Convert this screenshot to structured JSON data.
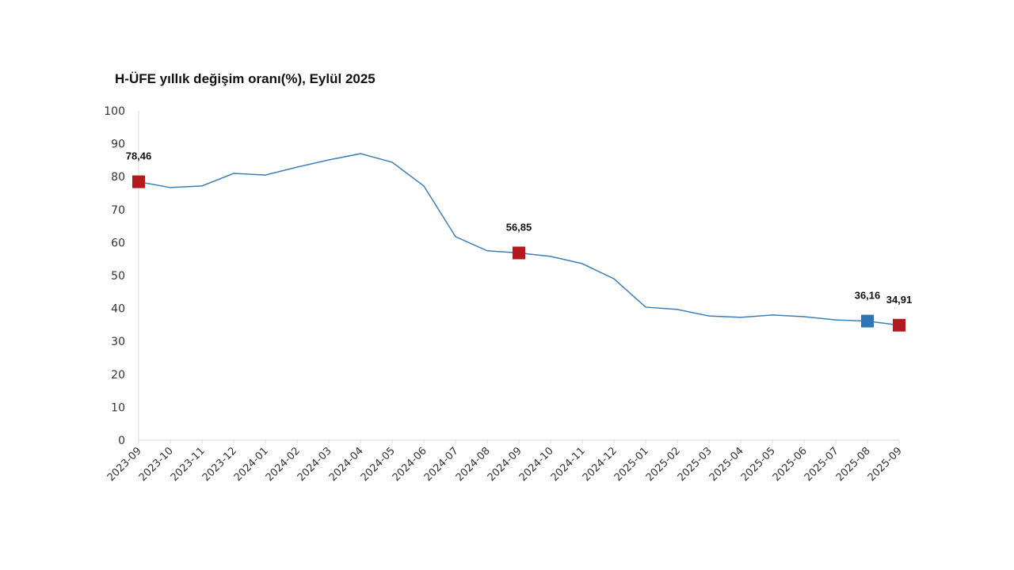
{
  "chart_data": {
    "type": "line",
    "title": "H-ÜFE yıllık değişim oranı(%), Eylül 2025",
    "xlabel": "",
    "ylabel": "",
    "ylim": [
      0,
      100
    ],
    "yticks": [
      0,
      10,
      20,
      30,
      40,
      50,
      60,
      70,
      80,
      90,
      100
    ],
    "grid": false,
    "categories": [
      "2023-09",
      "2023-10",
      "2023-11",
      "2023-12",
      "2024-01",
      "2024-02",
      "2024-03",
      "2024-04",
      "2024-05",
      "2024-06",
      "2024-07",
      "2024-08",
      "2024-09",
      "2024-10",
      "2024-11",
      "2024-12",
      "2025-01",
      "2025-02",
      "2025-03",
      "2025-04",
      "2025-05",
      "2025-06",
      "2025-07",
      "2025-08",
      "2025-09"
    ],
    "series": [
      {
        "name": "H-ÜFE",
        "color": "#3d7fb8",
        "values": [
          78.46,
          76.7,
          77.2,
          81.0,
          80.5,
          82.9,
          85.1,
          87.0,
          84.4,
          77.2,
          61.8,
          57.5,
          56.85,
          55.8,
          53.6,
          49.0,
          40.4,
          39.7,
          37.7,
          37.3,
          38.0,
          37.5,
          36.5,
          36.16,
          34.91
        ]
      }
    ],
    "highlights": [
      {
        "index": 0,
        "label": "78,46",
        "color": "#b5191f"
      },
      {
        "index": 12,
        "label": "56,85",
        "color": "#b5191f"
      },
      {
        "index": 23,
        "label": "36,16",
        "color": "#2e75b6"
      },
      {
        "index": 24,
        "label": "34,91",
        "color": "#b5191f"
      }
    ]
  }
}
